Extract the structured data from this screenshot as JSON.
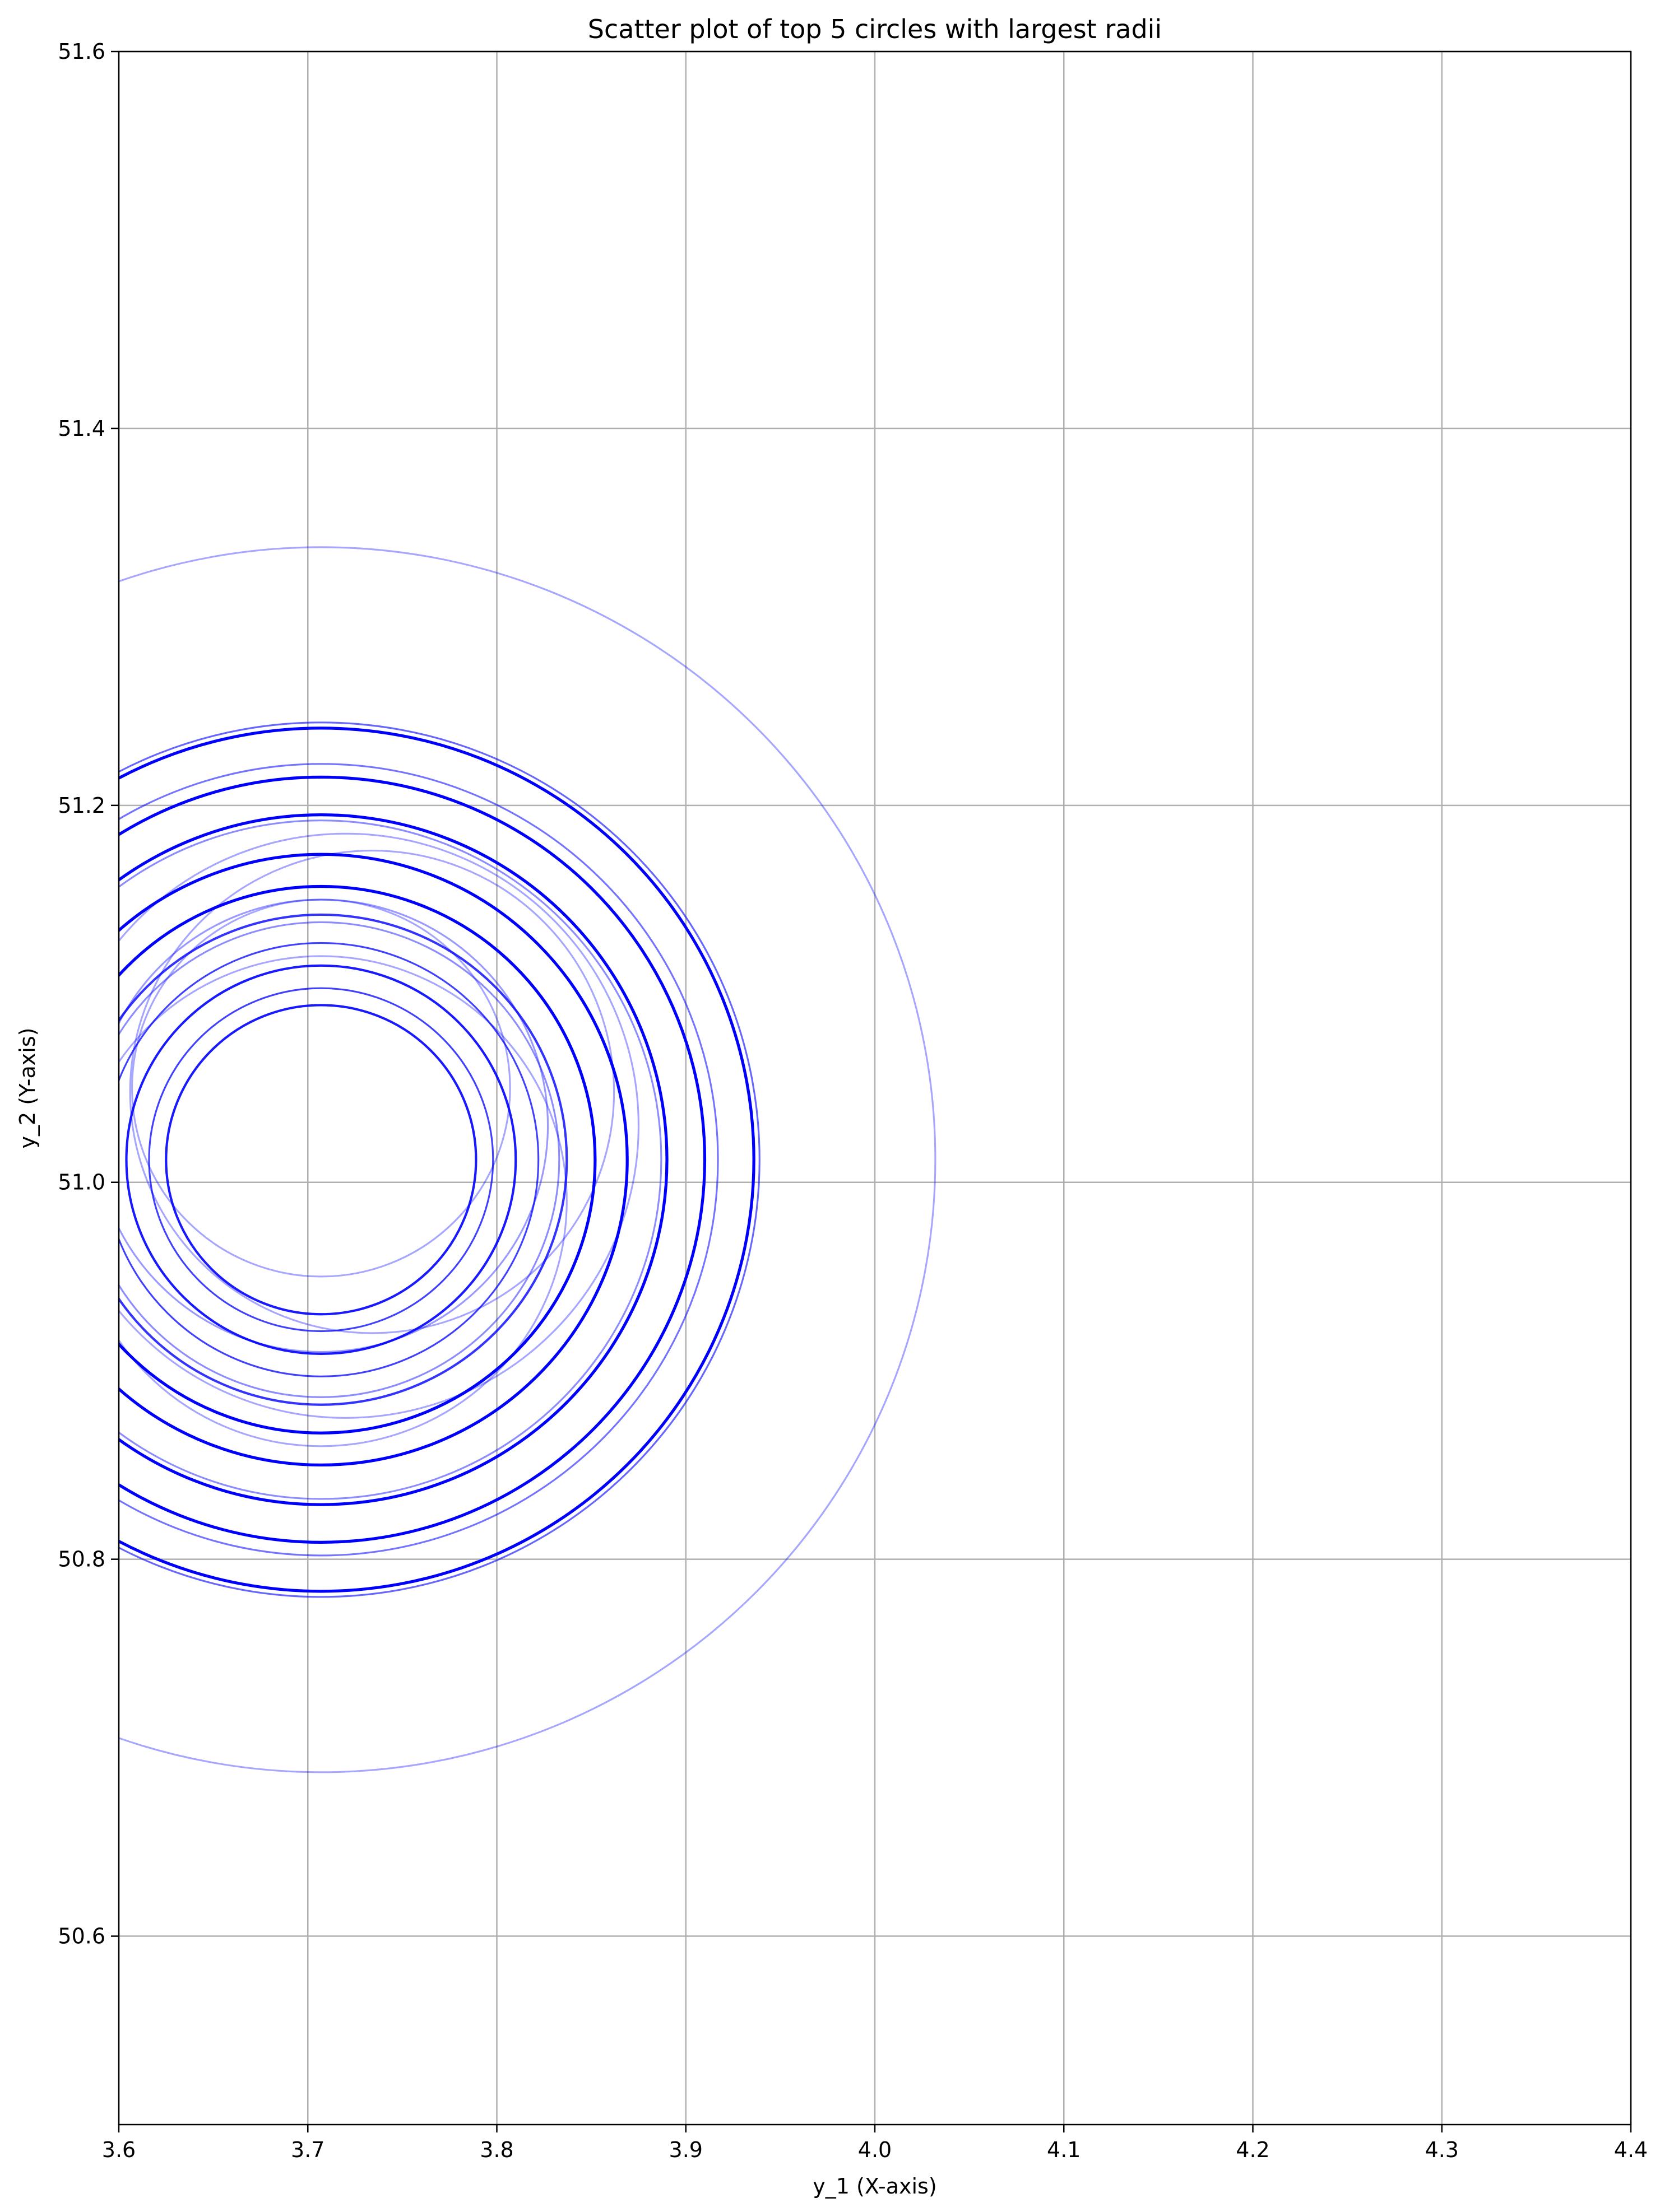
{
  "chart_data": {
    "type": "scatter",
    "title": "Scatter plot of top 5 circles with largest radii",
    "xlabel": "y_1 (X-axis)",
    "ylabel": "y_2 (Y-axis)",
    "xlim": [
      3.6,
      4.4
    ],
    "ylim": [
      50.5,
      51.6
    ],
    "x_ticks": [
      3.6,
      3.7,
      3.8,
      3.9,
      4.0,
      4.1,
      4.2,
      4.3,
      4.4
    ],
    "x_tick_labels": [
      "3.6",
      "3.7",
      "3.8",
      "3.9",
      "4.0",
      "4.1",
      "4.2",
      "4.3",
      "4.4"
    ],
    "y_ticks": [
      50.6,
      50.8,
      51.0,
      51.2,
      51.4,
      51.6
    ],
    "y_tick_labels": [
      "50.6",
      "50.8",
      "51.0",
      "51.2",
      "51.4",
      "51.6"
    ],
    "grid": true,
    "colors": {
      "circle": "#0000ff",
      "grid": "#b0b0b0",
      "axes": "#000000"
    },
    "circles": [
      {
        "cx": 3.707,
        "cy": 51.012,
        "r": 0.325,
        "alpha": 0.35,
        "lw": 1.5
      },
      {
        "cx": 3.707,
        "cy": 51.012,
        "r": 0.232,
        "alpha": 0.6,
        "lw": 1.5
      },
      {
        "cx": 3.707,
        "cy": 51.012,
        "r": 0.229,
        "alpha": 1.0,
        "lw": 2.5
      },
      {
        "cx": 3.707,
        "cy": 51.012,
        "r": 0.21,
        "alpha": 0.55,
        "lw": 1.5
      },
      {
        "cx": 3.707,
        "cy": 51.012,
        "r": 0.203,
        "alpha": 1.0,
        "lw": 2.5
      },
      {
        "cx": 3.707,
        "cy": 51.012,
        "r": 0.183,
        "alpha": 1.0,
        "lw": 2.5
      },
      {
        "cx": 3.707,
        "cy": 51.012,
        "r": 0.18,
        "alpha": 0.45,
        "lw": 1.5
      },
      {
        "cx": 3.707,
        "cy": 51.012,
        "r": 0.162,
        "alpha": 1.0,
        "lw": 2.5
      },
      {
        "cx": 3.707,
        "cy": 51.012,
        "r": 0.145,
        "alpha": 1.0,
        "lw": 2.5
      },
      {
        "cx": 3.707,
        "cy": 51.012,
        "r": 0.13,
        "alpha": 0.8,
        "lw": 2.0
      },
      {
        "cx": 3.707,
        "cy": 51.012,
        "r": 0.126,
        "alpha": 0.45,
        "lw": 1.5
      },
      {
        "cx": 3.707,
        "cy": 51.012,
        "r": 0.115,
        "alpha": 0.75,
        "lw": 1.5
      },
      {
        "cx": 3.707,
        "cy": 51.012,
        "r": 0.103,
        "alpha": 0.9,
        "lw": 2.0
      },
      {
        "cx": 3.707,
        "cy": 51.012,
        "r": 0.091,
        "alpha": 0.75,
        "lw": 1.5
      },
      {
        "cx": 3.707,
        "cy": 51.012,
        "r": 0.082,
        "alpha": 0.9,
        "lw": 2.0
      },
      {
        "cx": 3.734,
        "cy": 51.048,
        "r": 0.128,
        "alpha": 0.35,
        "lw": 1.5
      },
      {
        "cx": 3.707,
        "cy": 51.05,
        "r": 0.1,
        "alpha": 0.35,
        "lw": 1.5
      },
      {
        "cx": 3.707,
        "cy": 51.03,
        "r": 0.12,
        "alpha": 0.4,
        "lw": 1.5
      },
      {
        "cx": 3.72,
        "cy": 51.03,
        "r": 0.155,
        "alpha": 0.35,
        "lw": 1.5
      },
      {
        "cx": 3.707,
        "cy": 50.99,
        "r": 0.13,
        "alpha": 0.35,
        "lw": 1.5
      }
    ]
  }
}
